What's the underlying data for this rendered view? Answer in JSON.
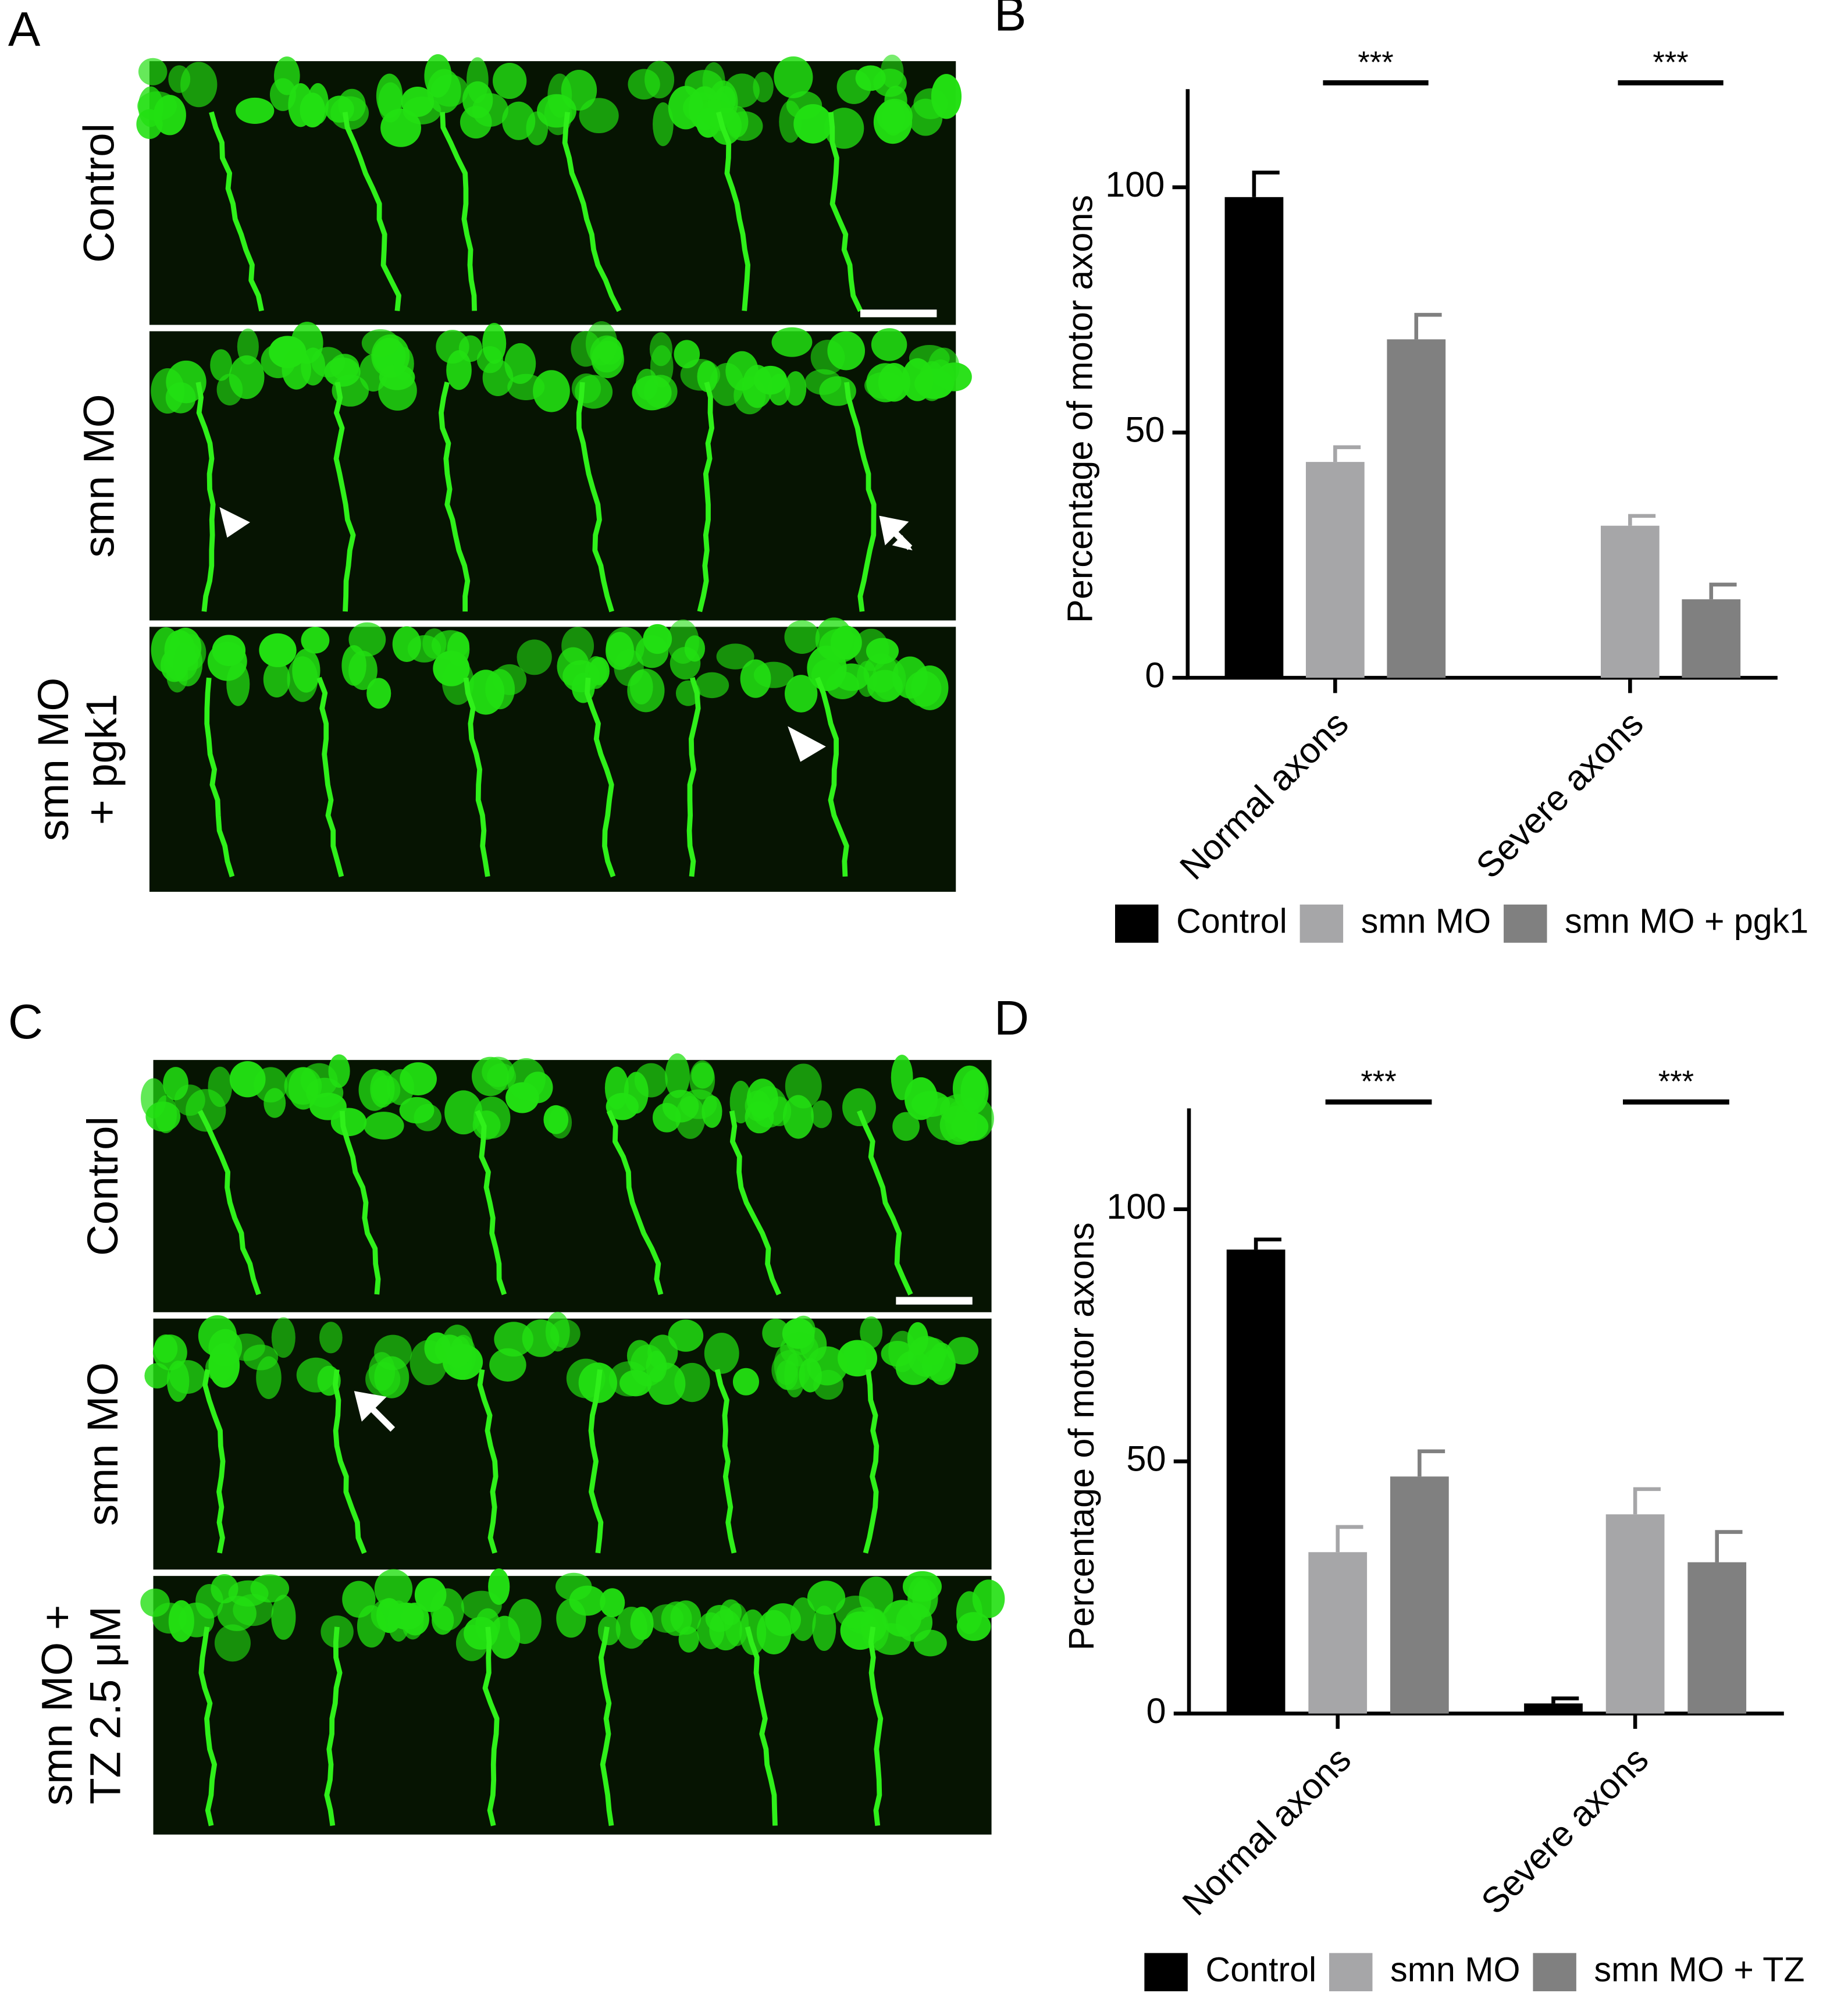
{
  "panels": [
    {
      "label": "A",
      "rows": [
        [
          "Control"
        ],
        [
          "smn MO"
        ],
        [
          "smn MO",
          "+ pgk1"
        ]
      ]
    },
    {
      "label": "C",
      "rows": [
        [
          "Control"
        ],
        [
          "smn MO"
        ],
        [
          "smn MO +",
          "TZ 2.5  μM"
        ]
      ]
    }
  ],
  "chart_data": [
    {
      "type": "bar",
      "panel": "B",
      "y_label": "Percentage of motor axons",
      "categories": [
        "Normal axons",
        "Severe axons"
      ],
      "series": [
        {
          "name": "Control",
          "color": "#000000",
          "values": [
            98,
            0
          ],
          "errors": [
            5,
            0
          ]
        },
        {
          "name": "smn MO",
          "color": "#a6a6a8",
          "values": [
            44,
            31
          ],
          "errors": [
            3,
            2
          ]
        },
        {
          "name": "smn MO + pgk1",
          "color": "#808080",
          "values": [
            69,
            16
          ],
          "errors": [
            5,
            3
          ]
        }
      ],
      "annotations": [
        "***",
        "***"
      ],
      "ylim": [
        0,
        120
      ],
      "yticks": [
        0,
        50,
        100
      ]
    },
    {
      "type": "bar",
      "panel": "D",
      "y_label": "Percentage of motor axons",
      "categories": [
        "Normal axons",
        "Severe axons"
      ],
      "series": [
        {
          "name": "Control",
          "color": "#000000",
          "values": [
            92,
            2
          ],
          "errors": [
            2,
            1
          ]
        },
        {
          "name": "smn MO",
          "color": "#a6a6a8",
          "values": [
            32,
            39.5
          ],
          "errors": [
            5,
            5
          ]
        },
        {
          "name": "smn MO + TZ",
          "color": "#808080",
          "values": [
            47,
            30
          ],
          "errors": [
            5,
            6
          ]
        }
      ],
      "annotations": [
        "***",
        "***"
      ],
      "ylim": [
        0,
        120
      ],
      "yticks": [
        0,
        50,
        100
      ]
    }
  ]
}
